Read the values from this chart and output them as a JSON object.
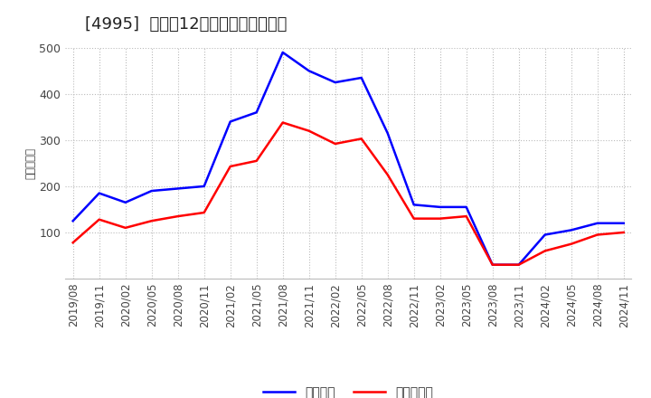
{
  "title": "[4995]  利益だ12か月移動合計の推移",
  "ylabel": "（百万円）",
  "background_color": "#ffffff",
  "grid_color": "#bbbbbb",
  "ylim": [
    0,
    500
  ],
  "yticks": [
    100,
    200,
    300,
    400,
    500
  ],
  "x_labels": [
    "2019/08",
    "2019/11",
    "2020/02",
    "2020/05",
    "2020/08",
    "2020/11",
    "2021/02",
    "2021/05",
    "2021/08",
    "2021/11",
    "2022/02",
    "2022/05",
    "2022/08",
    "2022/11",
    "2023/02",
    "2023/05",
    "2023/08",
    "2023/11",
    "2024/02",
    "2024/05",
    "2024/08",
    "2024/11"
  ],
  "operating_profit": [
    125,
    185,
    165,
    190,
    195,
    200,
    340,
    360,
    490,
    450,
    425,
    435,
    315,
    160,
    155,
    155,
    30,
    30,
    95,
    105,
    120,
    120
  ],
  "net_profit": [
    78,
    128,
    110,
    125,
    135,
    143,
    243,
    255,
    338,
    320,
    292,
    303,
    225,
    130,
    130,
    135,
    30,
    30,
    60,
    75,
    95,
    100
  ],
  "line_color_operating": "#0000ff",
  "line_color_net": "#ff0000",
  "legend_operating": "経常利益",
  "legend_net": "当期純利益",
  "title_fontsize": 13,
  "axis_fontsize": 8.5,
  "legend_fontsize": 10
}
